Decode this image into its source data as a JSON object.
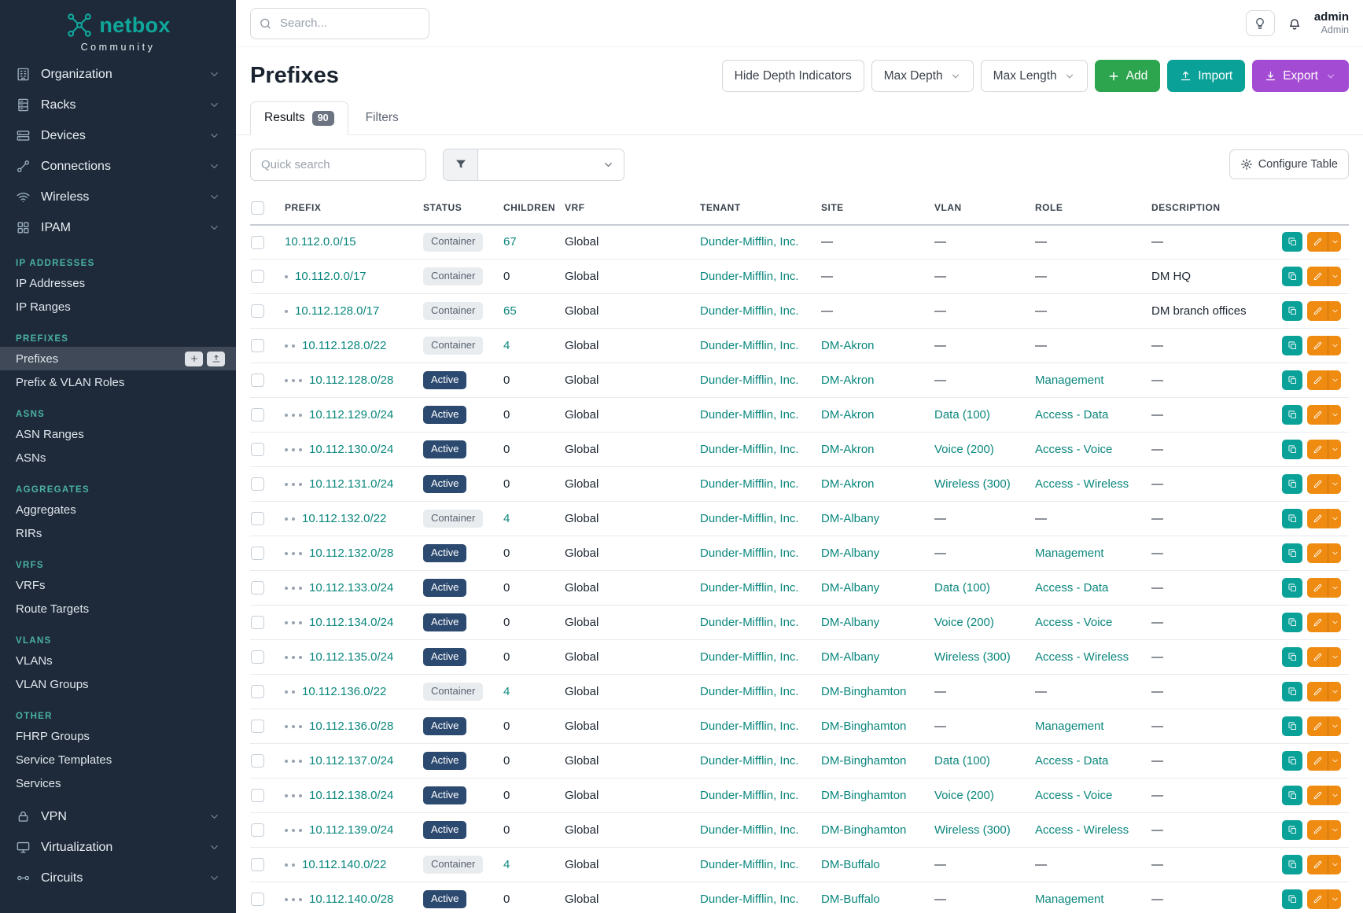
{
  "colors": {
    "sidebar_bg": "#1e2a3a",
    "brand_teal": "#0fa79a",
    "link_teal": "#0b877d",
    "add_green": "#2da44e",
    "import_teal": "#0aa198",
    "export_purple": "#a44bd3",
    "edit_orange": "#ef8b10",
    "active_badge": "#2c4a70",
    "container_badge": "#e9ecef"
  },
  "sidebar": {
    "logo_text": "netbox",
    "logo_subtext": "Community",
    "nav": [
      {
        "label": "Organization",
        "icon": "building-icon"
      },
      {
        "label": "Racks",
        "icon": "rack-icon"
      },
      {
        "label": "Devices",
        "icon": "device-icon"
      },
      {
        "label": "Connections",
        "icon": "connections-icon"
      },
      {
        "label": "Wireless",
        "icon": "wifi-icon"
      },
      {
        "label": "IPAM",
        "icon": "ipam-icon"
      }
    ],
    "sections": [
      {
        "title": "IP ADDRESSES",
        "items": [
          "IP Addresses",
          "IP Ranges"
        ]
      },
      {
        "title": "PREFIXES",
        "items": [
          "Prefixes",
          "Prefix & VLAN Roles"
        ]
      },
      {
        "title": "ASNS",
        "items": [
          "ASN Ranges",
          "ASNs"
        ]
      },
      {
        "title": "AGGREGATES",
        "items": [
          "Aggregates",
          "RIRs"
        ]
      },
      {
        "title": "VRFS",
        "items": [
          "VRFs",
          "Route Targets"
        ]
      },
      {
        "title": "VLANS",
        "items": [
          "VLANs",
          "VLAN Groups"
        ]
      },
      {
        "title": "OTHER",
        "items": [
          "FHRP Groups",
          "Service Templates",
          "Services"
        ]
      }
    ],
    "bottom_nav": [
      {
        "label": "VPN",
        "icon": "vpn-icon"
      },
      {
        "label": "Virtualization",
        "icon": "virtualization-icon"
      },
      {
        "label": "Circuits",
        "icon": "circuits-icon"
      }
    ],
    "active_item": "Prefixes"
  },
  "topbar": {
    "search_placeholder": "Search...",
    "user_name": "admin",
    "user_role": "Admin"
  },
  "page": {
    "title": "Prefixes",
    "controls": {
      "hide_depth": "Hide Depth Indicators",
      "max_depth": "Max Depth",
      "max_length": "Max Length",
      "add": "Add",
      "import": "Import",
      "export": "Export"
    },
    "tabs": [
      {
        "label": "Results",
        "badge": "90"
      },
      {
        "label": "Filters"
      }
    ],
    "quick_search_placeholder": "Quick search",
    "configure_table": "Configure Table"
  },
  "table": {
    "columns": [
      "PREFIX",
      "STATUS",
      "CHILDREN",
      "VRF",
      "TENANT",
      "SITE",
      "VLAN",
      "ROLE",
      "DESCRIPTION"
    ],
    "rows": [
      {
        "depth": 0,
        "prefix": "10.112.0.0/15",
        "status": "Container",
        "children": "67",
        "vrf": "Global",
        "tenant": "Dunder-Mifflin, Inc.",
        "site": "—",
        "vlan": "—",
        "role": "—",
        "description": "—"
      },
      {
        "depth": 1,
        "prefix": "10.112.0.0/17",
        "status": "Container",
        "children": "0",
        "vrf": "Global",
        "tenant": "Dunder-Mifflin, Inc.",
        "site": "—",
        "vlan": "—",
        "role": "—",
        "description": "DM HQ"
      },
      {
        "depth": 1,
        "prefix": "10.112.128.0/17",
        "status": "Container",
        "children": "65",
        "vrf": "Global",
        "tenant": "Dunder-Mifflin, Inc.",
        "site": "—",
        "vlan": "—",
        "role": "—",
        "description": "DM branch offices"
      },
      {
        "depth": 2,
        "prefix": "10.112.128.0/22",
        "status": "Container",
        "children": "4",
        "vrf": "Global",
        "tenant": "Dunder-Mifflin, Inc.",
        "site": "DM-Akron",
        "vlan": "—",
        "role": "—",
        "description": "—"
      },
      {
        "depth": 3,
        "prefix": "10.112.128.0/28",
        "status": "Active",
        "children": "0",
        "vrf": "Global",
        "tenant": "Dunder-Mifflin, Inc.",
        "site": "DM-Akron",
        "vlan": "—",
        "role": "Management",
        "description": "—"
      },
      {
        "depth": 3,
        "prefix": "10.112.129.0/24",
        "status": "Active",
        "children": "0",
        "vrf": "Global",
        "tenant": "Dunder-Mifflin, Inc.",
        "site": "DM-Akron",
        "vlan": "Data (100)",
        "role": "Access - Data",
        "description": "—"
      },
      {
        "depth": 3,
        "prefix": "10.112.130.0/24",
        "status": "Active",
        "children": "0",
        "vrf": "Global",
        "tenant": "Dunder-Mifflin, Inc.",
        "site": "DM-Akron",
        "vlan": "Voice (200)",
        "role": "Access - Voice",
        "description": "—"
      },
      {
        "depth": 3,
        "prefix": "10.112.131.0/24",
        "status": "Active",
        "children": "0",
        "vrf": "Global",
        "tenant": "Dunder-Mifflin, Inc.",
        "site": "DM-Akron",
        "vlan": "Wireless (300)",
        "role": "Access - Wireless",
        "description": "—"
      },
      {
        "depth": 2,
        "prefix": "10.112.132.0/22",
        "status": "Container",
        "children": "4",
        "vrf": "Global",
        "tenant": "Dunder-Mifflin, Inc.",
        "site": "DM-Albany",
        "vlan": "—",
        "role": "—",
        "description": "—"
      },
      {
        "depth": 3,
        "prefix": "10.112.132.0/28",
        "status": "Active",
        "children": "0",
        "vrf": "Global",
        "tenant": "Dunder-Mifflin, Inc.",
        "site": "DM-Albany",
        "vlan": "—",
        "role": "Management",
        "description": "—"
      },
      {
        "depth": 3,
        "prefix": "10.112.133.0/24",
        "status": "Active",
        "children": "0",
        "vrf": "Global",
        "tenant": "Dunder-Mifflin, Inc.",
        "site": "DM-Albany",
        "vlan": "Data (100)",
        "role": "Access - Data",
        "description": "—"
      },
      {
        "depth": 3,
        "prefix": "10.112.134.0/24",
        "status": "Active",
        "children": "0",
        "vrf": "Global",
        "tenant": "Dunder-Mifflin, Inc.",
        "site": "DM-Albany",
        "vlan": "Voice (200)",
        "role": "Access - Voice",
        "description": "—"
      },
      {
        "depth": 3,
        "prefix": "10.112.135.0/24",
        "status": "Active",
        "children": "0",
        "vrf": "Global",
        "tenant": "Dunder-Mifflin, Inc.",
        "site": "DM-Albany",
        "vlan": "Wireless (300)",
        "role": "Access - Wireless",
        "description": "—"
      },
      {
        "depth": 2,
        "prefix": "10.112.136.0/22",
        "status": "Container",
        "children": "4",
        "vrf": "Global",
        "tenant": "Dunder-Mifflin, Inc.",
        "site": "DM-Binghamton",
        "vlan": "—",
        "role": "—",
        "description": "—"
      },
      {
        "depth": 3,
        "prefix": "10.112.136.0/28",
        "status": "Active",
        "children": "0",
        "vrf": "Global",
        "tenant": "Dunder-Mifflin, Inc.",
        "site": "DM-Binghamton",
        "vlan": "—",
        "role": "Management",
        "description": "—"
      },
      {
        "depth": 3,
        "prefix": "10.112.137.0/24",
        "status": "Active",
        "children": "0",
        "vrf": "Global",
        "tenant": "Dunder-Mifflin, Inc.",
        "site": "DM-Binghamton",
        "vlan": "Data (100)",
        "role": "Access - Data",
        "description": "—"
      },
      {
        "depth": 3,
        "prefix": "10.112.138.0/24",
        "status": "Active",
        "children": "0",
        "vrf": "Global",
        "tenant": "Dunder-Mifflin, Inc.",
        "site": "DM-Binghamton",
        "vlan": "Voice (200)",
        "role": "Access - Voice",
        "description": "—"
      },
      {
        "depth": 3,
        "prefix": "10.112.139.0/24",
        "status": "Active",
        "children": "0",
        "vrf": "Global",
        "tenant": "Dunder-Mifflin, Inc.",
        "site": "DM-Binghamton",
        "vlan": "Wireless (300)",
        "role": "Access - Wireless",
        "description": "—"
      },
      {
        "depth": 2,
        "prefix": "10.112.140.0/22",
        "status": "Container",
        "children": "4",
        "vrf": "Global",
        "tenant": "Dunder-Mifflin, Inc.",
        "site": "DM-Buffalo",
        "vlan": "—",
        "role": "—",
        "description": "—"
      },
      {
        "depth": 3,
        "prefix": "10.112.140.0/28",
        "status": "Active",
        "children": "0",
        "vrf": "Global",
        "tenant": "Dunder-Mifflin, Inc.",
        "site": "DM-Buffalo",
        "vlan": "—",
        "role": "Management",
        "description": "—"
      }
    ]
  }
}
